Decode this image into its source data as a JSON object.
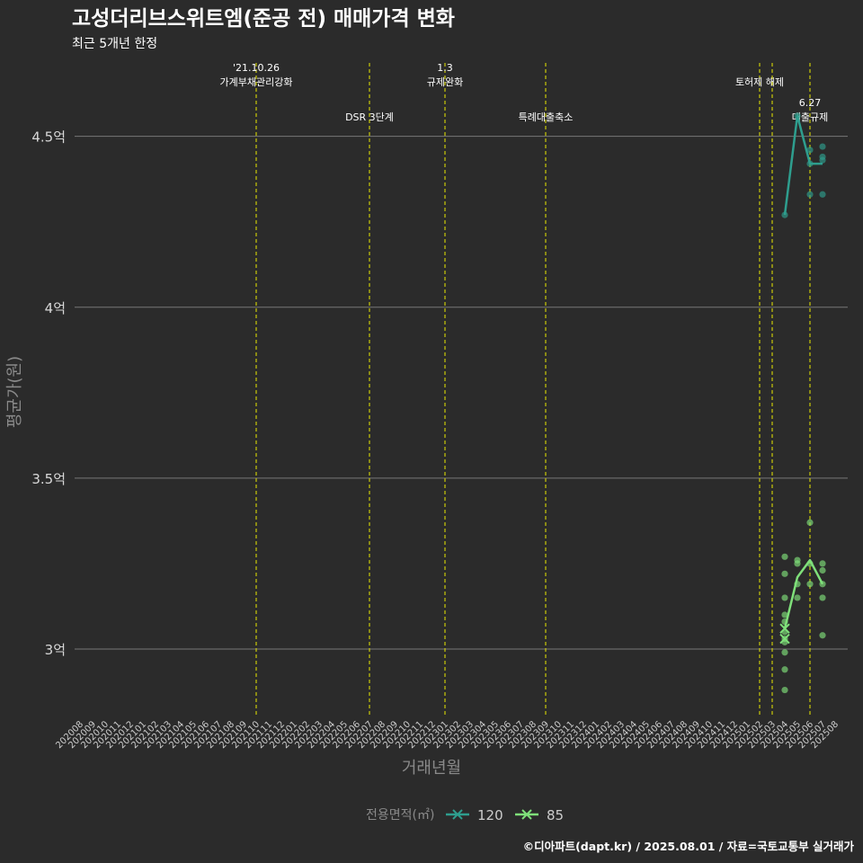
{
  "chart_data": {
    "type": "line",
    "title": "고성더리브스위트엠(준공 전) 매매가격 변화",
    "subtitle": "최근 5개년 한정",
    "xlabel": "거래년월",
    "ylabel": "평균가(원)",
    "caption": "©디아파트(dapt.kr) / 2025.08.01 / 자료=국토교통부 실거래가",
    "legend_title": "전용면적(㎡)",
    "y_ticks": [
      {
        "value": 3.0,
        "label": "3억"
      },
      {
        "value": 3.5,
        "label": "3.5억"
      },
      {
        "value": 4.0,
        "label": "4억"
      },
      {
        "value": 4.5,
        "label": "4.5억"
      }
    ],
    "ylim": [
      2.8,
      4.72
    ],
    "x_categories": [
      "202008",
      "202009",
      "202010",
      "202011",
      "202012",
      "202101",
      "202102",
      "202103",
      "202104",
      "202105",
      "202106",
      "202107",
      "202108",
      "202109",
      "202110",
      "202111",
      "202112",
      "202201",
      "202202",
      "202203",
      "202204",
      "202205",
      "202206",
      "202207",
      "202208",
      "202209",
      "202210",
      "202211",
      "202212",
      "202301",
      "202302",
      "202303",
      "202304",
      "202305",
      "202306",
      "202307",
      "202308",
      "202309",
      "202310",
      "202311",
      "202312",
      "202401",
      "202402",
      "202403",
      "202404",
      "202405",
      "202406",
      "202407",
      "202408",
      "202409",
      "202410",
      "202411",
      "202412",
      "202501",
      "202502",
      "202503",
      "202504",
      "202505",
      "202506",
      "202507",
      "202508"
    ],
    "events": [
      {
        "x": "202110",
        "lines": [
          "'21.10.26",
          "가계부채관리강화"
        ],
        "level": 0
      },
      {
        "x": "202207",
        "lines": [
          "DSR 3단계"
        ],
        "level": 1
      },
      {
        "x": "202301",
        "lines": [
          "1.3",
          "규제완화"
        ],
        "level": 0
      },
      {
        "x": "202309",
        "lines": [
          "특례대출축소"
        ],
        "level": 1
      },
      {
        "x": "202502",
        "lines": [
          "토허제 해제"
        ],
        "level": 0
      },
      {
        "x": "202503",
        "lines": [],
        "level": 0
      },
      {
        "x": "202506",
        "lines": [
          "6.27",
          "대출규제"
        ],
        "level": 1
      }
    ],
    "series": [
      {
        "name": "120",
        "color": "#2e9e8e",
        "line": [
          [
            "202504",
            4.27
          ],
          [
            "202505",
            4.56
          ],
          [
            "202506",
            4.42
          ],
          [
            "202507",
            4.42
          ]
        ],
        "points": [
          [
            "202504",
            4.27
          ],
          [
            "202505",
            4.56
          ],
          [
            "202506",
            4.46
          ],
          [
            "202506",
            4.42
          ],
          [
            "202506",
            4.33
          ],
          [
            "202507",
            4.47
          ],
          [
            "202507",
            4.44
          ],
          [
            "202507",
            4.43
          ],
          [
            "202507",
            4.33
          ]
        ]
      },
      {
        "name": "85",
        "color": "#7fe07a",
        "line": [
          [
            "202504",
            3.06
          ],
          [
            "202505",
            3.21
          ],
          [
            "202506",
            3.26
          ],
          [
            "202507",
            3.19
          ]
        ],
        "points": [
          [
            "202504",
            3.27
          ],
          [
            "202504",
            3.22
          ],
          [
            "202504",
            3.15
          ],
          [
            "202504",
            3.1
          ],
          [
            "202504",
            3.08
          ],
          [
            "202504",
            3.05
          ],
          [
            "202504",
            3.03
          ],
          [
            "202504",
            3.02
          ],
          [
            "202504",
            2.99
          ],
          [
            "202504",
            2.94
          ],
          [
            "202504",
            2.88
          ],
          [
            "202505",
            3.26
          ],
          [
            "202505",
            3.25
          ],
          [
            "202505",
            3.19
          ],
          [
            "202505",
            3.15
          ],
          [
            "202506",
            3.37
          ],
          [
            "202506",
            3.25
          ],
          [
            "202506",
            3.19
          ],
          [
            "202507",
            3.25
          ],
          [
            "202507",
            3.23
          ],
          [
            "202507",
            3.19
          ],
          [
            "202507",
            3.15
          ],
          [
            "202507",
            3.04
          ]
        ],
        "cross_points": [
          [
            "202504",
            3.06
          ],
          [
            "202504",
            3.03
          ]
        ]
      }
    ]
  }
}
